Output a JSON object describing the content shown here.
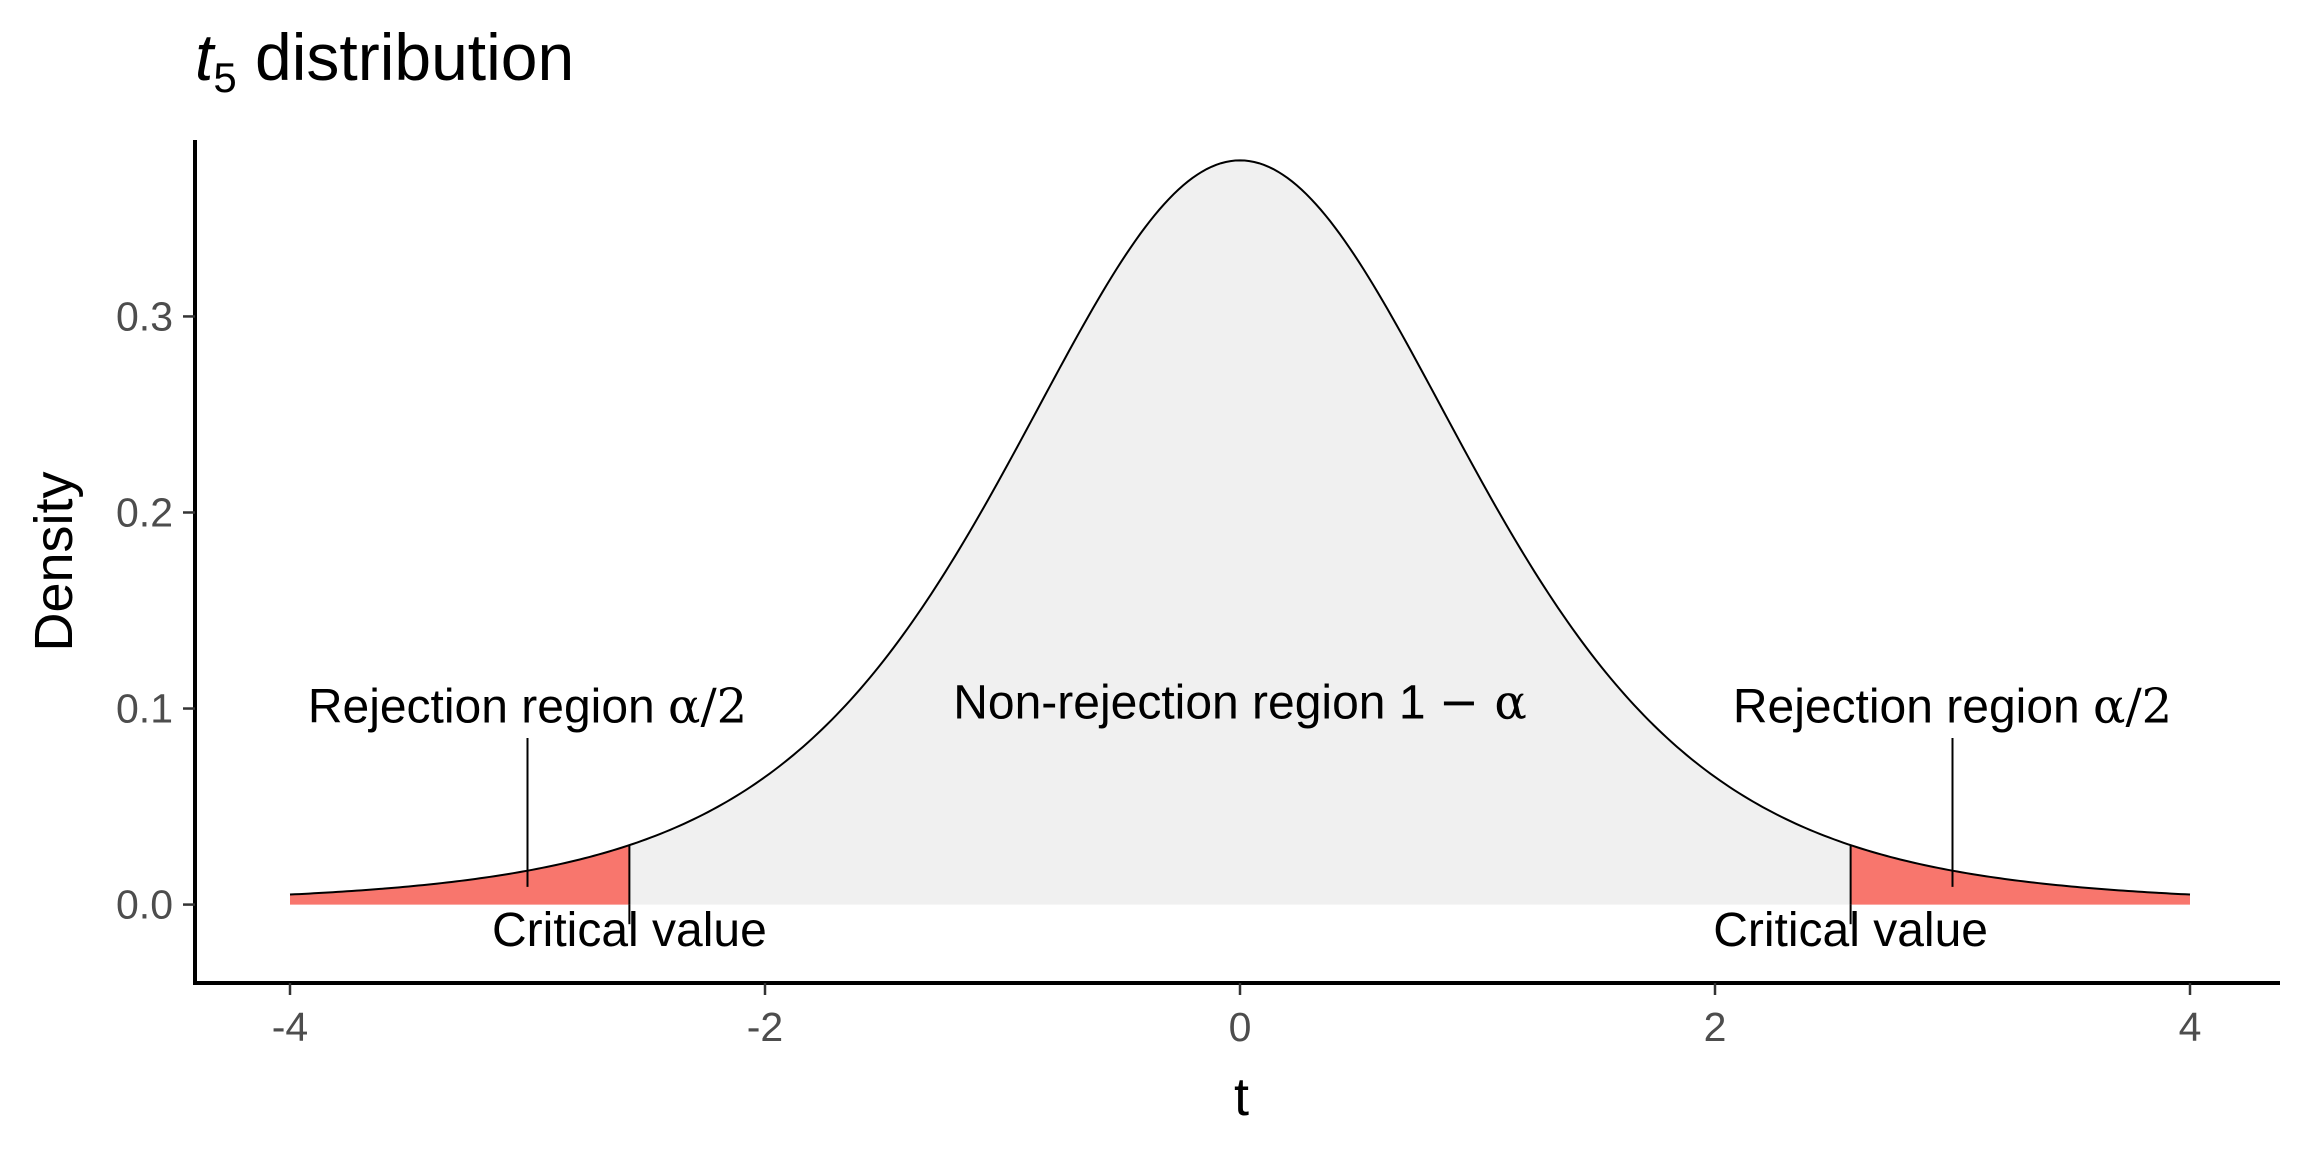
{
  "chart_data": {
    "type": "area",
    "title_var": "t",
    "title_sub": "5",
    "title_rest": " distribution",
    "xlabel": "t",
    "ylabel": "Density",
    "degrees_of_freedom": 5,
    "xlim": [
      -4,
      4
    ],
    "ylim": [
      -0.04,
      0.39
    ],
    "x_ticks": [
      -4,
      -2,
      0,
      2,
      4
    ],
    "x_tick_labels": [
      "-4",
      "-2",
      "0",
      "2",
      "4"
    ],
    "y_ticks": [
      0.0,
      0.1,
      0.2,
      0.3
    ],
    "y_tick_labels": [
      "0.0",
      "0.1",
      "0.2",
      "0.3"
    ],
    "critical_values": [
      -2.571,
      2.571
    ],
    "series": [
      {
        "region": "rejection-left",
        "x": [
          -4.0,
          -3.5,
          -3.0,
          -2.571
        ],
        "y": [
          0.005,
          0.009,
          0.017,
          0.03
        ],
        "color": "#F8766D"
      },
      {
        "region": "non-rejection",
        "x": [
          -2.571,
          -2.0,
          -1.5,
          -1.0,
          -0.5,
          0.0,
          0.5,
          1.0,
          1.5,
          2.0,
          2.571
        ],
        "y": [
          0.03,
          0.065,
          0.124,
          0.22,
          0.335,
          0.38,
          0.335,
          0.22,
          0.124,
          0.065,
          0.03
        ],
        "color": "#F0F0F0"
      },
      {
        "region": "rejection-right",
        "x": [
          2.571,
          3.0,
          3.5,
          4.0
        ],
        "y": [
          0.03,
          0.017,
          0.009,
          0.005
        ],
        "color": "#F8766D"
      }
    ],
    "annotations": {
      "rejection_left": {
        "text": "Rejection region ",
        "symbol": "α/2",
        "x": -3.0,
        "y": 0.093,
        "pointer_to_y": 0.009
      },
      "rejection_right": {
        "text": "Rejection region ",
        "symbol": "α/2",
        "x": 3.0,
        "y": 0.093,
        "pointer_to_y": 0.009
      },
      "non_rejection": {
        "text": "Non-rejection region 1 ",
        "symbol": "− α",
        "x": 0.0,
        "y": 0.095
      },
      "critical_left": {
        "text": "Critical value",
        "x": -2.571,
        "y": -0.021
      },
      "critical_right": {
        "text": "Critical value",
        "x": 2.571,
        "y": -0.021
      }
    },
    "grid": false,
    "legend": "none"
  }
}
